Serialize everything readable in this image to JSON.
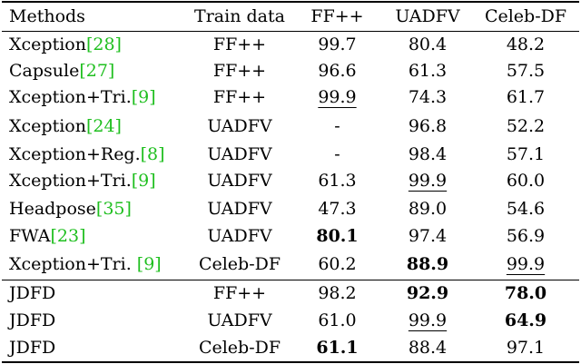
{
  "table": {
    "headers": [
      "Methods",
      "Train data",
      "FF++",
      "UADFV",
      "Celeb-DF"
    ],
    "rows": [
      {
        "method": "Xception",
        "ref": "[28]",
        "train": "FF++",
        "ff": "99.7",
        "uadfv": "80.4",
        "celeb": "48.2"
      },
      {
        "method": "Capsule",
        "ref": "[27]",
        "train": "FF++",
        "ff": "96.6",
        "uadfv": "61.3",
        "celeb": "57.5"
      },
      {
        "method": "Xception+Tri.",
        "ref": "[9]",
        "train": "FF++",
        "ff": "99.9",
        "uadfv": "74.3",
        "celeb": "61.7"
      },
      {
        "method": "Xception",
        "ref": "[24]",
        "train": "UADFV",
        "ff": "-",
        "uadfv": "96.8",
        "celeb": "52.2"
      },
      {
        "method": "Xception+Reg.",
        "ref": "[8]",
        "train": "UADFV",
        "ff": "-",
        "uadfv": "98.4",
        "celeb": "57.1"
      },
      {
        "method": "Xception+Tri.",
        "ref": "[9]",
        "train": "UADFV",
        "ff": "61.3",
        "uadfv": "99.9",
        "celeb": "60.0"
      },
      {
        "method": "Headpose",
        "ref": "[35]",
        "train": "UADFV",
        "ff": "47.3",
        "uadfv": "89.0",
        "celeb": "54.6"
      },
      {
        "method": "FWA",
        "ref": "[23]",
        "train": "UADFV",
        "ff": "80.1",
        "uadfv": "97.4",
        "celeb": "56.9"
      },
      {
        "method": "Xception+Tri. ",
        "ref": "[9]",
        "train": "Celeb-DF",
        "ff": "60.2",
        "uadfv": "88.9",
        "celeb": "99.9"
      },
      {
        "method": "JDFD",
        "ref": "",
        "train": "FF++",
        "ff": "98.2",
        "uadfv": "92.9",
        "celeb": "78.0"
      },
      {
        "method": "JDFD",
        "ref": "",
        "train": "UADFV",
        "ff": "61.0",
        "uadfv": "99.9",
        "celeb": "64.9"
      },
      {
        "method": "JDFD",
        "ref": "",
        "train": "Celeb-DF",
        "ff": "61.1",
        "uadfv": "88.4",
        "celeb": "97.1"
      }
    ]
  },
  "colors": {
    "text": "#000000",
    "reference_link": "#1fbf1f",
    "background": "#ffffff"
  }
}
